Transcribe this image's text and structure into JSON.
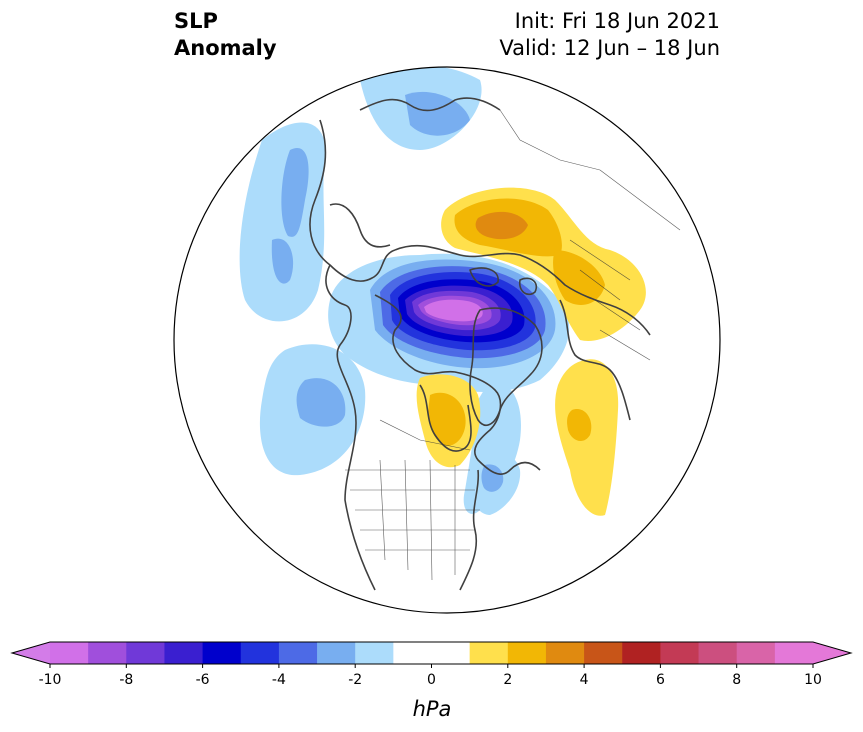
{
  "title": {
    "left_line1": "SLP",
    "left_line2": "Anomaly",
    "right_line1": "Init: Fri 18 Jun 2021",
    "right_line2": "Valid: 12 Jun – 18 Jun"
  },
  "colorbar": {
    "unit": "hPa",
    "min": -10,
    "max": 10,
    "extend": "both",
    "levels": [
      -10,
      -9,
      -8,
      -7,
      -6,
      -5,
      -4,
      -3,
      -2,
      -1,
      1,
      2,
      3,
      4,
      5,
      6,
      7,
      8,
      9,
      10
    ],
    "colors": [
      "#d170e8",
      "#a04fdc",
      "#7039d8",
      "#3a1fd0",
      "#0000cc",
      "#2233dd",
      "#4d6ae6",
      "#78aef0",
      "#acdcfb",
      "#ffffff",
      "#ffe04c",
      "#f2b705",
      "#e08a10",
      "#c85518",
      "#b02222",
      "#c33a55",
      "#cc4f7f",
      "#d964a8",
      "#e478d8"
    ],
    "under_color": "#d37ce8",
    "over_color": "#e478d8",
    "tick_values": [
      -10,
      -8,
      -6,
      -4,
      -2,
      0,
      2,
      4,
      6,
      8,
      10
    ],
    "tick_labels": [
      "-10",
      "-8",
      "-6",
      "-4",
      "-2",
      "0",
      "2",
      "4",
      "6",
      "8",
      "10"
    ]
  },
  "map": {
    "projection": "north-polar-stereographic",
    "region": "Northern Hemisphere",
    "features": [
      "coastlines",
      "country-borders",
      "us-state-borders",
      "canada-province-borders"
    ],
    "anomaly_features": [
      {
        "name": "arctic-low-center",
        "type": "negative",
        "min_value": -10,
        "over": "Arctic Ocean north of Siberia / Kara Sea"
      },
      {
        "name": "scandinavia-high",
        "type": "positive",
        "max_value": 4,
        "over": "Northern Europe / Scandinavia"
      },
      {
        "name": "siberia-high",
        "type": "positive",
        "max_value": 3,
        "over": "Western Siberia"
      },
      {
        "name": "hudson-bay-high",
        "type": "positive",
        "max_value": 3,
        "over": "Hudson Bay / Canadian Arctic"
      },
      {
        "name": "north-atlantic-high",
        "type": "positive",
        "max_value": 3,
        "over": "Central North Atlantic"
      },
      {
        "name": "north-pacific-low",
        "type": "negative",
        "min_value": -3,
        "over": "North Pacific / Gulf of Alaska"
      },
      {
        "name": "japan-low",
        "type": "negative",
        "min_value": -3,
        "over": "Northwest Pacific / Japan"
      },
      {
        "name": "eastern-canada-low",
        "type": "negative",
        "min_value": -2,
        "over": "Eastern Canada / Newfoundland"
      }
    ]
  }
}
